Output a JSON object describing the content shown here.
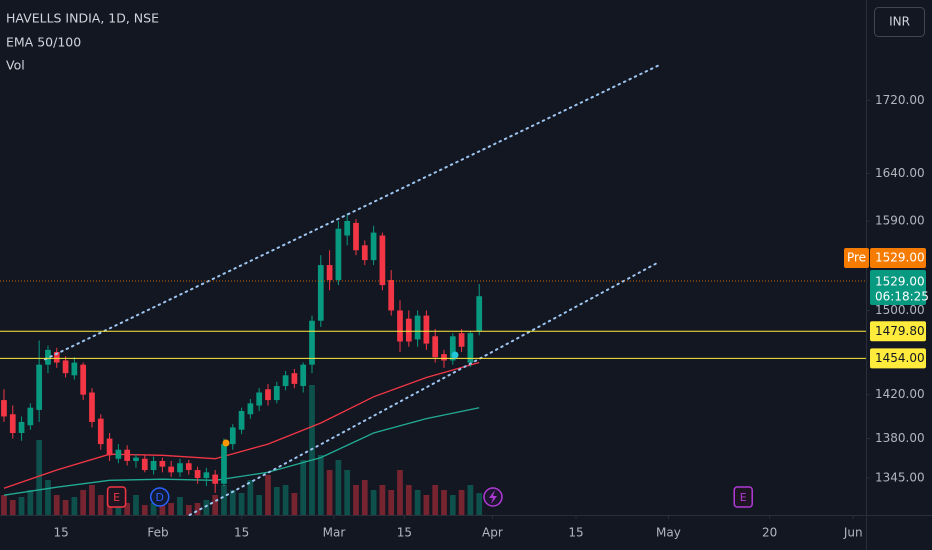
{
  "chart_data": {
    "type": "candlestick",
    "title": "HAVELLS INDIA, 1D, NSE",
    "indicators": [
      "EMA 50/100",
      "Vol"
    ],
    "currency": "INR",
    "log": true,
    "grid": false,
    "up_color": "#089981",
    "down_color": "#f23645",
    "x": [
      0,
      1,
      2,
      3,
      4,
      5,
      6,
      7,
      8,
      9,
      10,
      11,
      12,
      13,
      14,
      15,
      16,
      17,
      18,
      19,
      20,
      21,
      22,
      23,
      24,
      25,
      26,
      27,
      28,
      29,
      30,
      31,
      32,
      33,
      34,
      35,
      36,
      37,
      38,
      39,
      40,
      41,
      42,
      43,
      44,
      45,
      46,
      47,
      48,
      49,
      50,
      51,
      52,
      53,
      54
    ],
    "open": [
      1415,
      1402,
      1385,
      1392,
      1406,
      1448,
      1460,
      1452,
      1438,
      1448,
      1422,
      1398,
      1380,
      1362,
      1370,
      1360,
      1362,
      1352,
      1360,
      1355,
      1350,
      1358,
      1352,
      1345,
      1348,
      1340,
      1375,
      1388,
      1402,
      1410,
      1425,
      1415,
      1428,
      1440,
      1428,
      1448,
      1490,
      1545,
      1530,
      1575,
      1588,
      1565,
      1550,
      1575,
      1530,
      1500,
      1492,
      1472,
      1495,
      1475,
      1458,
      1452,
      1478,
      1450,
      1480
    ],
    "high": [
      1425,
      1410,
      1400,
      1412,
      1471,
      1466,
      1464,
      1456,
      1455,
      1450,
      1426,
      1402,
      1385,
      1375,
      1374,
      1366,
      1365,
      1364,
      1363,
      1360,
      1362,
      1361,
      1355,
      1354,
      1352,
      1380,
      1393,
      1408,
      1416,
      1426,
      1430,
      1432,
      1442,
      1444,
      1450,
      1495,
      1555,
      1560,
      1590,
      1598,
      1592,
      1570,
      1585,
      1578,
      1540,
      1510,
      1500,
      1500,
      1500,
      1482,
      1462,
      1478,
      1482,
      1480,
      1526
    ],
    "low": [
      1395,
      1380,
      1378,
      1388,
      1395,
      1440,
      1445,
      1436,
      1434,
      1415,
      1390,
      1370,
      1360,
      1358,
      1356,
      1354,
      1350,
      1348,
      1350,
      1346,
      1346,
      1348,
      1340,
      1338,
      1332,
      1338,
      1370,
      1384,
      1398,
      1405,
      1410,
      1412,
      1424,
      1426,
      1422,
      1440,
      1484,
      1520,
      1525,
      1565,
      1555,
      1545,
      1545,
      1520,
      1495,
      1460,
      1465,
      1465,
      1462,
      1450,
      1445,
      1448,
      1460,
      1446,
      1476
    ],
    "close": [
      1400,
      1385,
      1395,
      1408,
      1448,
      1462,
      1450,
      1440,
      1450,
      1420,
      1395,
      1375,
      1365,
      1370,
      1360,
      1363,
      1352,
      1360,
      1355,
      1350,
      1358,
      1352,
      1345,
      1350,
      1340,
      1375,
      1390,
      1405,
      1412,
      1422,
      1415,
      1428,
      1438,
      1430,
      1448,
      1490,
      1545,
      1530,
      1582,
      1590,
      1560,
      1550,
      1578,
      1525,
      1500,
      1470,
      1470,
      1495,
      1468,
      1455,
      1452,
      1475,
      1465,
      1478,
      1514
    ],
    "volume": [
      20,
      15,
      18,
      25,
      75,
      35,
      20,
      15,
      18,
      25,
      30,
      20,
      18,
      15,
      12,
      20,
      10,
      12,
      15,
      12,
      18,
      10,
      12,
      15,
      20,
      30,
      25,
      22,
      35,
      20,
      40,
      28,
      30,
      22,
      55,
      130,
      60,
      45,
      55,
      45,
      30,
      35,
      25,
      30,
      25,
      45,
      30,
      25,
      20,
      30,
      25,
      20,
      25,
      30,
      22
    ],
    "vlim": [
      0,
      135
    ],
    "ema": [
      {
        "color": "#f23645",
        "x": [
          0,
          6,
          12,
          18,
          24,
          30,
          36,
          42,
          48,
          54
        ],
        "values": [
          1336,
          1352,
          1366,
          1365,
          1362,
          1375,
          1394,
          1418,
          1436,
          1450
        ]
      },
      {
        "color": "#22ab94",
        "x": [
          0,
          6,
          12,
          18,
          24,
          30,
          36,
          42,
          48,
          54
        ],
        "values": [
          1330,
          1337,
          1343,
          1344,
          1343,
          1350,
          1363,
          1385,
          1398,
          1408
        ]
      }
    ],
    "trendlines": [
      {
        "color": "#9ec5f0",
        "points": [
          [
            4.66,
            1453
          ],
          [
            74.5,
            1760
          ]
        ]
      },
      {
        "color": "#9ec5f0",
        "points": [
          [
            21.1,
            1313
          ],
          [
            74.2,
            1547
          ]
        ]
      }
    ],
    "hlines": [
      {
        "value": 1479.8,
        "label": "1479.80",
        "color": "#ffeb3b"
      },
      {
        "value": 1454,
        "label": "1454.00",
        "color": "#ffeb3b"
      }
    ],
    "pre_market": {
      "tag": "Pre",
      "value": 1529,
      "label": "1529.00",
      "color": "#f57c00"
    },
    "last_price": {
      "value": 1529,
      "label": "1529.00",
      "countdown": "06:18:25",
      "color": "#089981"
    },
    "events": [
      {
        "label": "E",
        "x": 12.8,
        "color": "#f23645"
      },
      {
        "label": "D",
        "x": 17.7,
        "color": "#2962ff"
      },
      {
        "label": "E",
        "x": 84,
        "color": "#b03ad6"
      }
    ],
    "xlim": [
      -0.45,
      97.95
    ],
    "ylim": [
      1313,
      1836
    ],
    "xticks": [
      {
        "value": 6.5,
        "label": "15"
      },
      {
        "value": 17.5,
        "label": "Feb"
      },
      {
        "value": 27,
        "label": "15"
      },
      {
        "value": 37.5,
        "label": "Mar"
      },
      {
        "value": 45.5,
        "label": "15"
      },
      {
        "value": 55.5,
        "label": "Apr"
      },
      {
        "value": 65,
        "label": "15"
      },
      {
        "value": 75.5,
        "label": "May"
      },
      {
        "value": 87,
        "label": "20"
      },
      {
        "value": 96.5,
        "label": "Jun"
      }
    ],
    "yticks": [
      {
        "value": 1345,
        "label": "1345.00"
      },
      {
        "value": 1380,
        "label": "1380.00"
      },
      {
        "value": 1420,
        "label": "1420.00"
      },
      {
        "value": 1500,
        "label": "1500.00"
      },
      {
        "value": 1590,
        "label": "1590.00"
      },
      {
        "value": 1640,
        "label": "1640.00"
      },
      {
        "value": 1720,
        "label": "1720.00"
      }
    ]
  }
}
